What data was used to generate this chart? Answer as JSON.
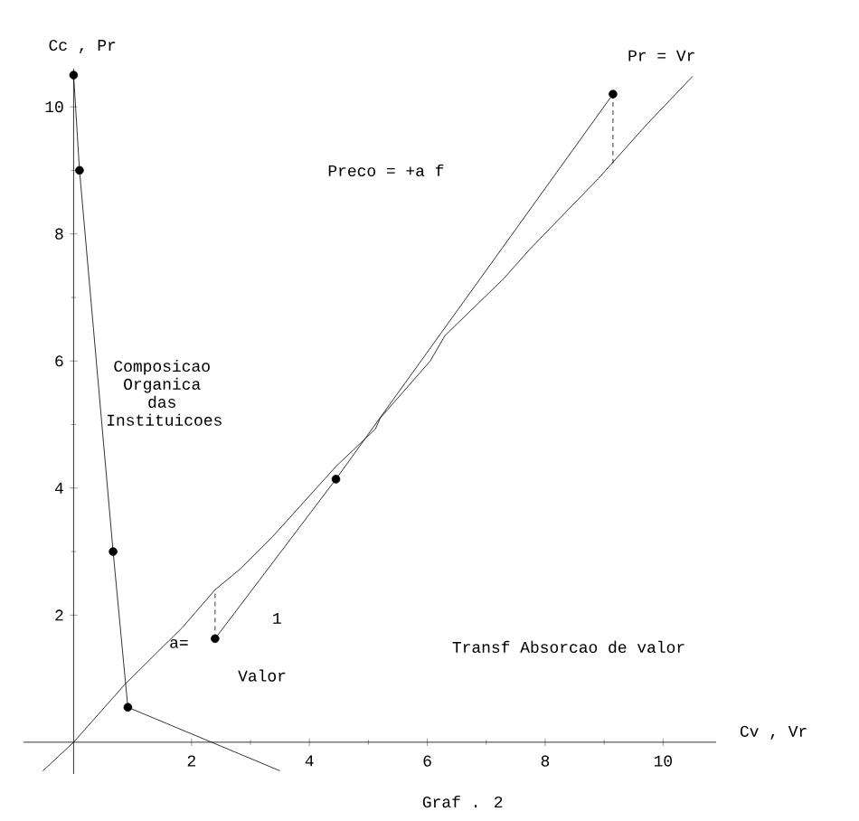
{
  "chart_data": {
    "type": "line",
    "title": "Graf . 2",
    "xlabel": "Cv , Vr",
    "ylabel": "Cc , Pr",
    "xlim": [
      -0.85,
      10.9
    ],
    "ylim": [
      -0.5,
      10.6
    ],
    "xticks": [
      2,
      4,
      6,
      8,
      10
    ],
    "yticks": [
      2,
      4,
      6,
      8,
      10
    ],
    "grid": false,
    "series": [
      {
        "color": "#000000",
        "marker": "circle",
        "line_style": "solid",
        "x": [
          0,
          0.1,
          0.67,
          0.92
        ],
        "values": [
          10.5,
          9.0,
          3.0,
          0.55
        ]
      },
      {
        "color": "#000000",
        "marker": "none",
        "line_style": "solid",
        "x": [
          0.92,
          3.5
        ],
        "values": [
          0.55,
          -0.45
        ]
      },
      {
        "color": "#000000",
        "marker": "circle",
        "line_style": "solid",
        "x": [
          2.4,
          4.45,
          9.15
        ],
        "values": [
          1.63,
          4.14,
          10.2
        ]
      },
      {
        "color": "#000000",
        "marker": "none",
        "line_style": "solid",
        "x": [
          -0.52,
          0,
          0.86,
          1.38,
          1.84,
          2.4,
          2.83,
          3.38,
          4.45,
          5.12,
          5.2,
          6.05,
          6.3,
          7.3,
          7.73,
          8.9,
          9.72,
          10.5
        ],
        "values": [
          -0.45,
          0,
          0.9,
          1.38,
          1.8,
          2.4,
          2.73,
          3.24,
          4.34,
          4.93,
          5.1,
          6.0,
          6.4,
          7.3,
          7.75,
          8.87,
          9.72,
          10.48
        ]
      },
      {
        "color": "#000000",
        "marker": "none",
        "line_style": "dashed",
        "x": [
          2.4,
          2.4
        ],
        "values": [
          1.63,
          2.4
        ]
      },
      {
        "color": "#000000",
        "marker": "none",
        "line_style": "dashed",
        "x": [
          9.15,
          9.15
        ],
        "values": [
          10.2,
          9.07
        ]
      }
    ],
    "annotations": [
      {
        "text": "Pr = Vr",
        "x": 10.5,
        "y": 10.48
      },
      "Preco = +a f",
      "Composicao Organica das Instituicoes",
      "a=",
      "1",
      "Valor",
      "Transf  Absorcao  de  valor"
    ]
  }
}
